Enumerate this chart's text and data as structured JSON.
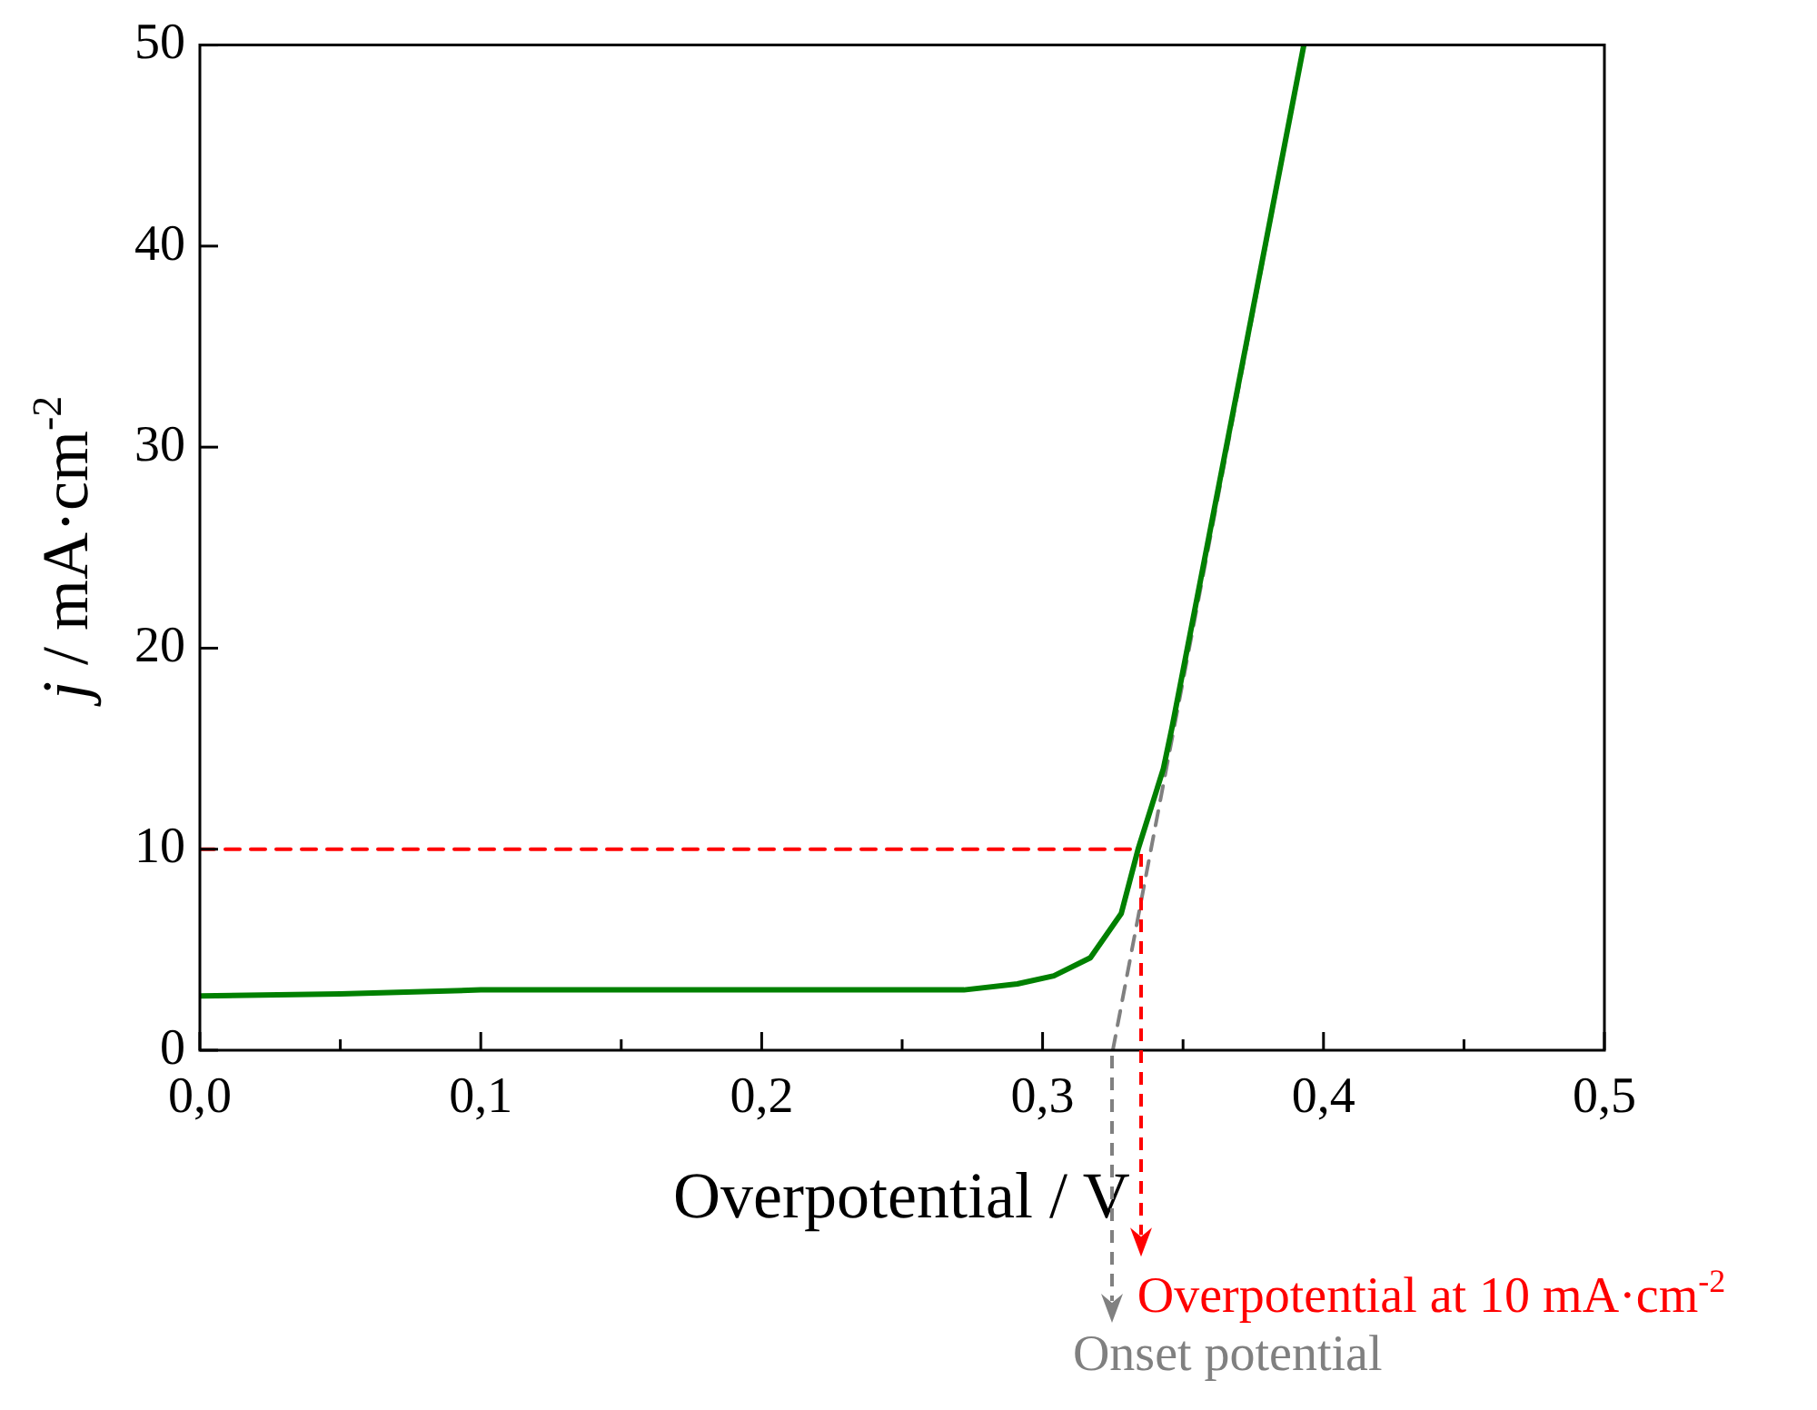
{
  "chart_data": {
    "type": "line",
    "xlabel": "Overpotential / V",
    "ylabel": "j / mA·cm$^{-2}$",
    "xlim": [
      0,
      0.5
    ],
    "ylim": [
      0,
      50
    ],
    "xticks": [
      {
        "value": 0,
        "label": "0,0"
      },
      {
        "value": 0.05,
        "label": null
      },
      {
        "value": 0.1,
        "label": "0,1"
      },
      {
        "value": 0.15,
        "label": null
      },
      {
        "value": 0.2,
        "label": "0,2"
      },
      {
        "value": 0.25,
        "label": null
      },
      {
        "value": 0.3,
        "label": "0,3"
      },
      {
        "value": 0.35,
        "label": null
      },
      {
        "value": 0.4,
        "label": "0,4"
      },
      {
        "value": 0.45,
        "label": null
      },
      {
        "value": 0.5,
        "label": "0,5"
      }
    ],
    "yticks": [
      0,
      10,
      20,
      30,
      40,
      50
    ],
    "grid": false,
    "legend": false,
    "marker": "none",
    "series": [
      {
        "color": "#008000",
        "line_style": "solid",
        "x": [
          0,
          0.05,
          0.1,
          0.15,
          0.2,
          0.25,
          0.272,
          0.291,
          0.304,
          0.317,
          0.328,
          0.334,
          0.343,
          0.346,
          0.373,
          0.393
        ],
        "values": [
          2.7,
          2.8,
          3.0,
          3.0,
          3.0,
          3.0,
          3.0,
          3.3,
          3.7,
          4.6,
          6.8,
          10,
          14,
          16,
          35.5,
          50
        ]
      },
      {
        "color": "#ff0000",
        "line_style": "dashed",
        "x": [
          0,
          0.335
        ],
        "values": [
          10,
          10
        ]
      },
      {
        "color": "#808080",
        "line_style": "dashed",
        "x": [
          0.325,
          0.393
        ],
        "values": [
          0,
          50
        ]
      }
    ],
    "annotations": [
      {
        "text": "Overpotential at 10 mA·cm$^{-2}$",
        "x": 0.335,
        "y": 10
      },
      {
        "text": "Onset potential",
        "x": 0.325,
        "y": 0
      }
    ]
  }
}
